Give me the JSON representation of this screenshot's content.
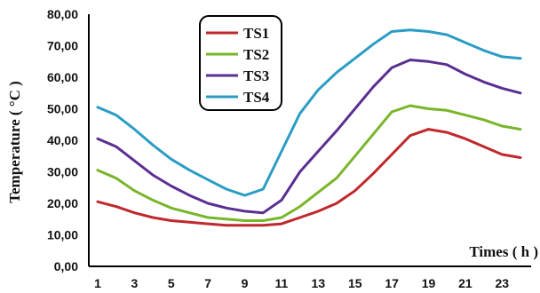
{
  "chart_data": {
    "type": "line",
    "title": "",
    "xlabel": "Times ( h )",
    "ylabel": "Temperature ( °C )",
    "ylim": [
      0,
      80
    ],
    "yticks": [
      "0,00",
      "10,00",
      "20,00",
      "30,00",
      "40,00",
      "50,00",
      "60,00",
      "70,00",
      "80,00"
    ],
    "xticks": [
      "1",
      "3",
      "5",
      "7",
      "9",
      "11",
      "13",
      "15",
      "17",
      "19",
      "21",
      "23"
    ],
    "x": [
      1,
      2,
      3,
      4,
      5,
      6,
      7,
      8,
      9,
      10,
      11,
      12,
      13,
      14,
      15,
      16,
      17,
      18,
      19,
      20,
      21,
      22,
      23,
      24
    ],
    "grid": false,
    "legend_position": "top-center",
    "series": [
      {
        "name": "TS1",
        "color": "#c0282d",
        "values": [
          20.5,
          19,
          17,
          15.5,
          14.5,
          14,
          13.5,
          13,
          13,
          13,
          13.5,
          15.5,
          17.5,
          20,
          24,
          29.5,
          35.5,
          41.5,
          43.5,
          42.5,
          40.5,
          38,
          35.5,
          34.5
        ]
      },
      {
        "name": "TS2",
        "color": "#79b52a",
        "values": [
          30.5,
          28,
          24,
          21,
          18.5,
          17,
          15.5,
          15,
          14.5,
          14.5,
          15.5,
          19,
          23.5,
          28,
          35,
          42,
          49,
          51,
          50,
          49.5,
          48,
          46.5,
          44.5,
          43.5
        ]
      },
      {
        "name": "TS3",
        "color": "#5b2f91",
        "values": [
          40.5,
          38,
          33.5,
          29,
          25.5,
          22.5,
          20,
          18.5,
          17.5,
          17,
          21,
          30,
          36.5,
          43,
          50,
          57,
          63,
          65.5,
          65,
          64,
          61,
          58.5,
          56.5,
          55
        ]
      },
      {
        "name": "TS4",
        "color": "#2b9dc4",
        "values": [
          50.5,
          48,
          43.5,
          38.5,
          34,
          30.5,
          27.5,
          24.5,
          22.5,
          24.5,
          36.5,
          48.5,
          56,
          61.5,
          66,
          70.5,
          74.5,
          75,
          74.5,
          73.5,
          71,
          68.5,
          66.5,
          66
        ]
      }
    ]
  }
}
